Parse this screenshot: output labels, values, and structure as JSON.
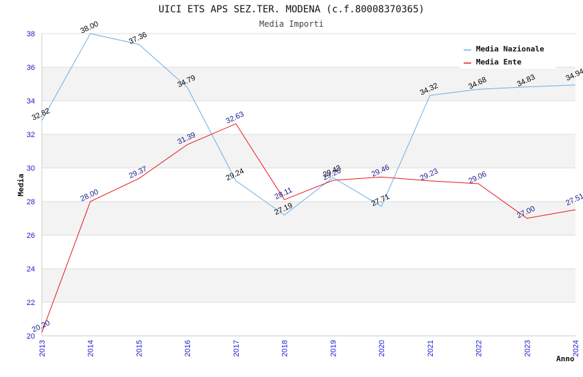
{
  "chart_data": {
    "type": "line",
    "title": "UICI ETS APS SEZ.TER. MODENA (c.f.80008370365)",
    "subtitle": "Media Importi",
    "xlabel": "Anno",
    "ylabel": "Media",
    "x": [
      "2013",
      "2014",
      "2015",
      "2016",
      "2017",
      "2018",
      "2019",
      "2020",
      "2021",
      "2022",
      "2023",
      "2024"
    ],
    "ylim": [
      20,
      38
    ],
    "yticks": [
      "20",
      "22",
      "24",
      "26",
      "28",
      "30",
      "32",
      "34",
      "36",
      "38"
    ],
    "grid": true,
    "legend_position": "top-right",
    "series": [
      {
        "name": "Media Nazionale",
        "color": "#6aaee8",
        "label_color": "#000000",
        "values": [
          32.82,
          38.0,
          37.36,
          34.79,
          29.24,
          27.19,
          29.43,
          27.71,
          34.32,
          34.68,
          34.83,
          34.94
        ],
        "labels": [
          "32.82",
          "38.00",
          "37.36",
          "34.79",
          "29.24",
          "27.19",
          "29.43",
          "27.71",
          "34.32",
          "34.68",
          "34.83",
          "34.94"
        ]
      },
      {
        "name": "Media Ente",
        "color": "#e8141c",
        "label_color": "#1a1a8c",
        "values": [
          20.2,
          28.0,
          29.37,
          31.39,
          32.63,
          28.11,
          29.26,
          29.46,
          29.23,
          29.06,
          27.0,
          27.51
        ],
        "labels": [
          "20.20",
          "28.00",
          "29.37",
          "31.39",
          "32.63",
          "28.11",
          "29.26",
          "29.46",
          "29.23",
          "29.06",
          "27.00",
          "27.51"
        ]
      }
    ]
  }
}
